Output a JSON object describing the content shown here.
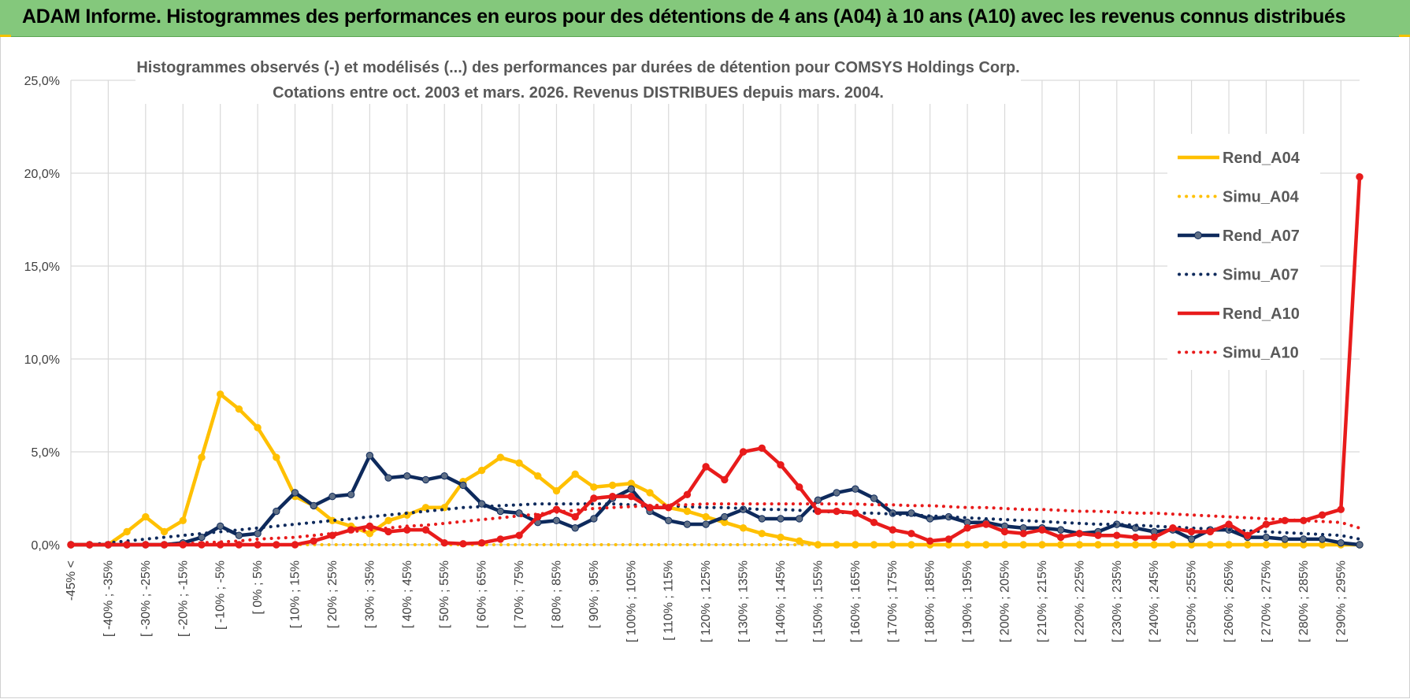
{
  "banner": {
    "title": "ADAM Informe. Histogrammes des performances en euros pour des détentions de 4 ans (A04) à 10 ans (A10) avec les revenus connus distribués"
  },
  "chart_data": {
    "type": "line",
    "title_line1": "Histogrammes observés (-) et modélisés (...) des performances par durées de détention pour COMSYS Holdings Corp.",
    "title_line2": "Cotations entre oct. 2003 et mars. 2026. Revenus DISTRIBUES depuis mars. 2004.",
    "y_ticks": [
      "0,0%",
      "5,0%",
      "10,0%",
      "15,0%",
      "20,0%",
      "25,0%"
    ],
    "ylim": [
      0,
      25
    ],
    "x_labels": [
      "-45% <",
      "[ -40% ; -35%",
      "[ -30% ; -25%",
      "[ -20% ; -15%",
      "[ -10% ; -5%",
      "[ 0% ; 5%",
      "[ 10% ; 15%",
      "[ 20% ; 25%",
      "[ 30% ; 35%",
      "[ 40% ; 45%",
      "[ 50% ; 55%",
      "[ 60% ; 65%",
      "[ 70% ; 75%",
      "[ 80% ; 85%",
      "[ 90% ; 95%",
      "[ 100% ; 105%",
      "[ 110% ; 115%",
      "[ 120% ; 125%",
      "[ 130% ; 135%",
      "[ 140% ; 145%",
      "[ 150% ; 155%",
      "[ 160% ; 165%",
      "[ 170% ; 175%",
      "[ 180% ; 185%",
      "[ 190% ; 195%",
      "[ 200% ; 205%",
      "[ 210% ; 215%",
      "[ 220% ; 225%",
      "[ 230% ; 235%",
      "[ 240% ; 245%",
      "[ 250% ; 255%",
      "[ 260% ; 265%",
      "[ 270% ; 275%",
      "[ 280% ; 285%",
      "[ 290% ; 295%"
    ],
    "n_points": 70,
    "series": [
      {
        "name": "Rend_A04",
        "style": "solid",
        "color": "#ffc000",
        "values": [
          0,
          0,
          0,
          0.7,
          1.5,
          0.7,
          1.3,
          4.7,
          8.1,
          7.3,
          6.3,
          4.7,
          2.6,
          2.1,
          1.3,
          1.0,
          0.6,
          1.3,
          1.6,
          2.0,
          2.0,
          3.4,
          4.0,
          4.7,
          4.4,
          3.7,
          2.9,
          3.8,
          3.1,
          3.2,
          3.3,
          2.8,
          2.0,
          1.8,
          1.5,
          1.2,
          0.9,
          0.6,
          0.4,
          0.2,
          0,
          0,
          0,
          0,
          0,
          0,
          0,
          0,
          0,
          0,
          0,
          0,
          0,
          0,
          0,
          0,
          0,
          0,
          0,
          0,
          0,
          0,
          0,
          0,
          0,
          0,
          0,
          0,
          0,
          0
        ]
      },
      {
        "name": "Simu_A04",
        "style": "dotted",
        "color": "#ffc000",
        "values": [
          0,
          0,
          0,
          0,
          0,
          0,
          0,
          0,
          0,
          0,
          0,
          0,
          0,
          0,
          0,
          0,
          0,
          0,
          0,
          0,
          0,
          0,
          0,
          0,
          0,
          0,
          0,
          0,
          0,
          0,
          0,
          0,
          0,
          0,
          0,
          0,
          0,
          0,
          0,
          0,
          0,
          0,
          0,
          0,
          0,
          0,
          0,
          0,
          0,
          0,
          0,
          0,
          0,
          0,
          0,
          0,
          0,
          0,
          0,
          0,
          0,
          0,
          0,
          0,
          0,
          0,
          0,
          0,
          0,
          0
        ]
      },
      {
        "name": "Rend_A07",
        "style": "solid",
        "color": "#0e2a5c",
        "values": [
          0,
          0,
          0,
          0,
          0,
          0,
          0.1,
          0.4,
          1.0,
          0.5,
          0.6,
          1.8,
          2.8,
          2.1,
          2.6,
          2.7,
          4.8,
          3.6,
          3.7,
          3.5,
          3.7,
          3.2,
          2.2,
          1.8,
          1.7,
          1.2,
          1.3,
          0.9,
          1.4,
          2.5,
          3.0,
          1.8,
          1.3,
          1.1,
          1.1,
          1.5,
          1.9,
          1.4,
          1.4,
          1.4,
          2.4,
          2.8,
          3.0,
          2.5,
          1.7,
          1.7,
          1.4,
          1.5,
          1.2,
          1.2,
          1.0,
          0.9,
          0.9,
          0.8,
          0.6,
          0.7,
          1.1,
          0.9,
          0.7,
          0.8,
          0.3,
          0.8,
          0.8,
          0.4,
          0.4,
          0.3,
          0.3,
          0.3,
          0.1,
          0
        ]
      },
      {
        "name": "Simu_A07",
        "style": "dotted",
        "color": "#0e2a5c",
        "values": [
          0,
          0,
          0.1,
          0.2,
          0.3,
          0.4,
          0.5,
          0.6,
          0.7,
          0.8,
          0.9,
          1.0,
          1.1,
          1.2,
          1.3,
          1.4,
          1.5,
          1.6,
          1.7,
          1.8,
          1.9,
          2.0,
          2.05,
          2.1,
          2.15,
          2.2,
          2.2,
          2.2,
          2.2,
          2.2,
          2.15,
          2.1,
          2.1,
          2.05,
          2.0,
          2.0,
          1.95,
          1.9,
          1.9,
          1.85,
          1.8,
          1.75,
          1.7,
          1.7,
          1.65,
          1.6,
          1.55,
          1.5,
          1.45,
          1.4,
          1.35,
          1.3,
          1.25,
          1.2,
          1.15,
          1.1,
          1.1,
          1.05,
          1.0,
          0.95,
          0.9,
          0.85,
          0.8,
          0.75,
          0.7,
          0.65,
          0.6,
          0.55,
          0.5,
          0.3
        ]
      },
      {
        "name": "Rend_A10",
        "style": "solid",
        "color": "#e81b1b",
        "values": [
          0,
          0,
          0,
          0,
          0,
          0,
          0,
          0,
          0,
          0,
          0,
          0,
          0,
          0.2,
          0.5,
          0.8,
          1.0,
          0.7,
          0.8,
          0.8,
          0.1,
          0.05,
          0.1,
          0.3,
          0.5,
          1.5,
          1.9,
          1.5,
          2.5,
          2.6,
          2.6,
          2.0,
          2.0,
          2.7,
          4.2,
          3.5,
          5.0,
          5.2,
          4.3,
          3.1,
          1.8,
          1.8,
          1.7,
          1.2,
          0.8,
          0.6,
          0.2,
          0.3,
          0.9,
          1.1,
          0.7,
          0.6,
          0.8,
          0.4,
          0.6,
          0.5,
          0.5,
          0.4,
          0.4,
          0.9,
          0.7,
          0.7,
          1.1,
          0.5,
          1.1,
          1.3,
          1.3,
          1.6,
          1.9,
          19.8
        ]
      },
      {
        "name": "Simu_A10",
        "style": "dotted",
        "color": "#e81b1b",
        "values": [
          0,
          0,
          0,
          0,
          0,
          0,
          0.05,
          0.1,
          0.15,
          0.2,
          0.3,
          0.35,
          0.4,
          0.5,
          0.6,
          0.7,
          0.8,
          0.9,
          1.0,
          1.05,
          1.15,
          1.25,
          1.35,
          1.45,
          1.55,
          1.65,
          1.75,
          1.85,
          1.95,
          2.0,
          2.05,
          2.1,
          2.15,
          2.15,
          2.2,
          2.2,
          2.2,
          2.2,
          2.2,
          2.2,
          2.2,
          2.2,
          2.2,
          2.15,
          2.15,
          2.1,
          2.1,
          2.05,
          2.0,
          2.0,
          1.95,
          1.9,
          1.9,
          1.85,
          1.8,
          1.8,
          1.75,
          1.7,
          1.7,
          1.65,
          1.6,
          1.55,
          1.5,
          1.45,
          1.4,
          1.35,
          1.3,
          1.25,
          1.2,
          0.9
        ]
      }
    ],
    "legend": [
      "Rend_A04",
      "Simu_A04",
      "Rend_A07",
      "Simu_A07",
      "Rend_A10",
      "Simu_A10"
    ],
    "legend_position": "right"
  }
}
